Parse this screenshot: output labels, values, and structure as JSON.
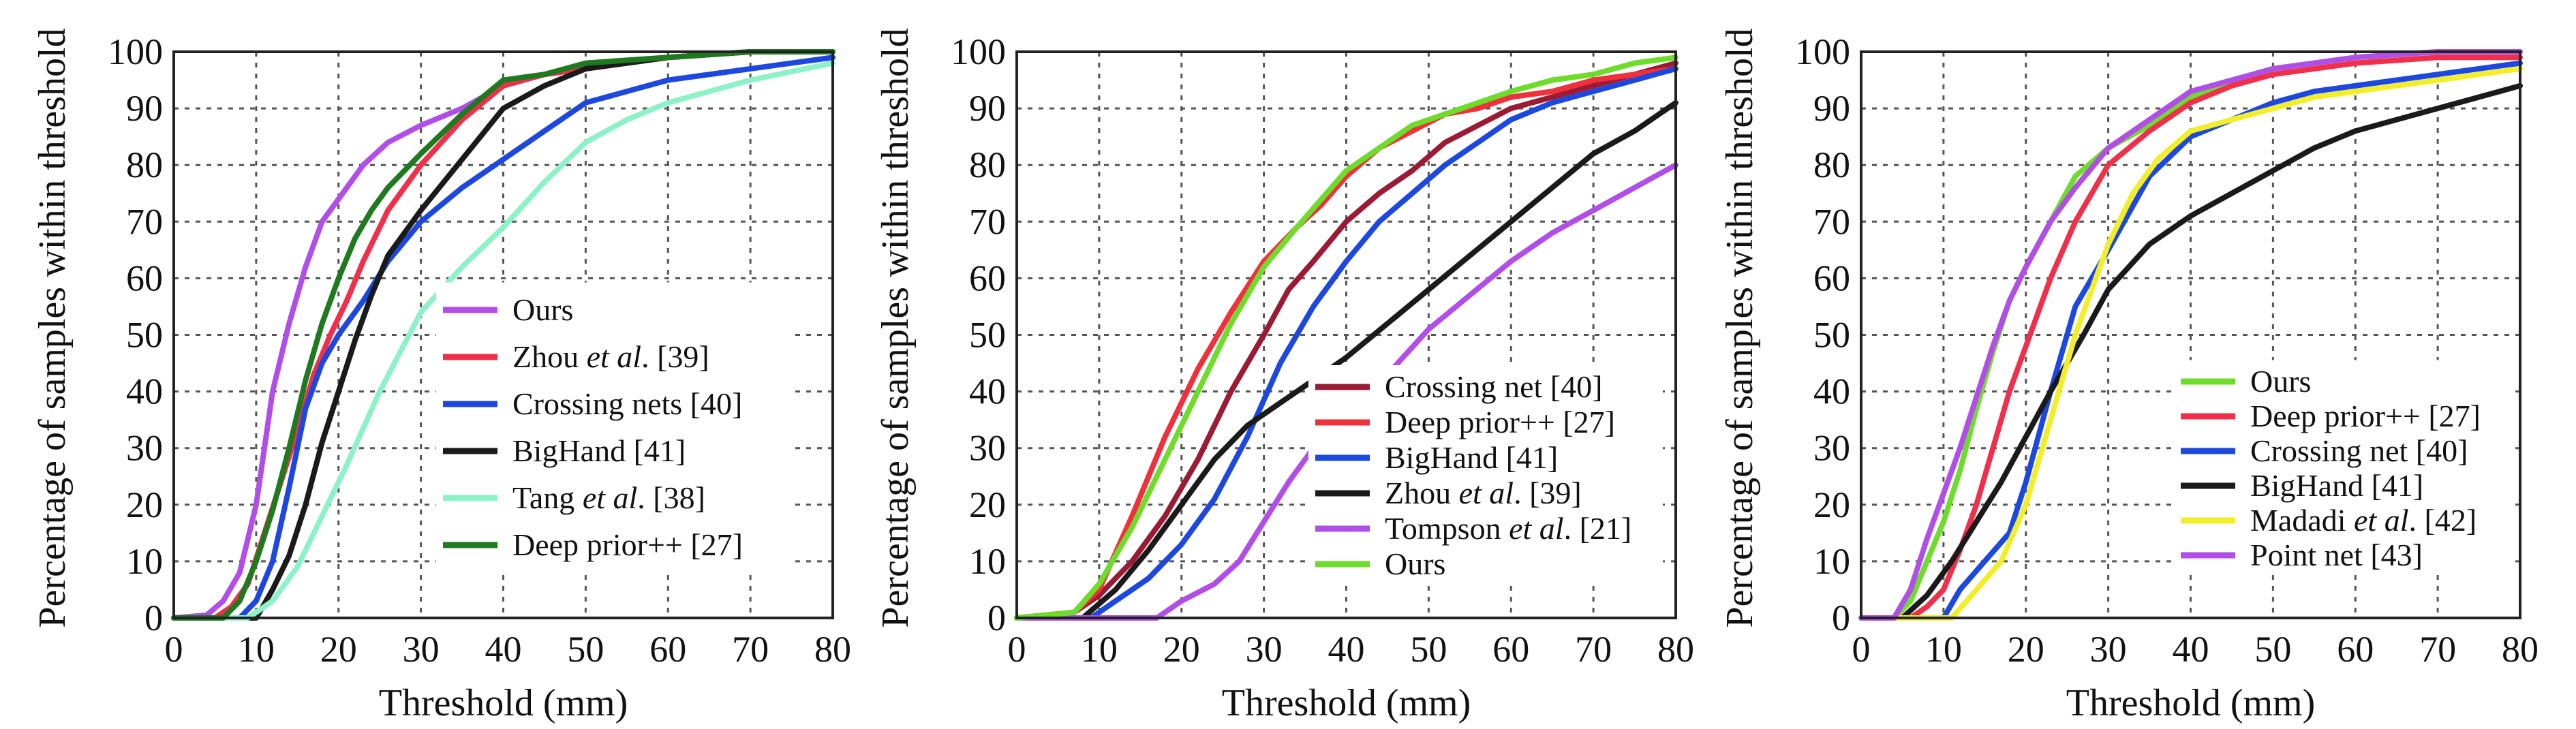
{
  "chart_data": [
    {
      "type": "line",
      "xlabel": "Threshold (mm)",
      "ylabel": "Percentage of samples within threshold",
      "xlim": [
        0,
        80
      ],
      "ylim": [
        0,
        100
      ],
      "xticks": [
        "0",
        "10",
        "20",
        "30",
        "40",
        "50",
        "60",
        "70",
        "80"
      ],
      "yticks": [
        "0",
        "10",
        "20",
        "30",
        "40",
        "50",
        "60",
        "70",
        "80",
        "90",
        "100"
      ],
      "grid": true,
      "legend_position": "lower-right",
      "series": [
        {
          "name": "Ours",
          "color": "#b24ee8",
          "legend_parts": [
            "Ours"
          ],
          "x": [
            0,
            4,
            6,
            8,
            10,
            11,
            12,
            14,
            16,
            18,
            20,
            23,
            26,
            30,
            35,
            40,
            45,
            50,
            60,
            70,
            80
          ],
          "y": [
            0,
            0.5,
            3,
            8,
            20,
            30,
            40,
            52,
            62,
            70,
            74,
            80,
            84,
            87,
            90,
            94,
            96,
            97,
            99,
            100,
            100
          ]
        },
        {
          "name": "Zhou et al. [39]",
          "color": "#f0304a",
          "legend_parts": [
            "Zhou ",
            "et al",
            ". [39]"
          ],
          "x": [
            0,
            5,
            7,
            9,
            11,
            13,
            15,
            17,
            19,
            21,
            23,
            26,
            30,
            35,
            40,
            45,
            50,
            60,
            70,
            80
          ],
          "y": [
            0,
            0,
            2,
            6,
            15,
            24,
            33,
            43,
            50,
            56,
            63,
            72,
            80,
            88,
            94,
            96,
            97,
            99,
            100,
            100
          ]
        },
        {
          "name": "Crossing nets [40]",
          "color": "#1c48e0",
          "legend_parts": [
            "Crossing nets [40]"
          ],
          "x": [
            0,
            8,
            10,
            12,
            14,
            16,
            18,
            20,
            23,
            26,
            30,
            35,
            40,
            45,
            50,
            55,
            60,
            70,
            80
          ],
          "y": [
            0,
            0,
            3,
            10,
            23,
            37,
            45,
            50,
            56,
            63,
            70,
            76,
            81,
            86,
            91,
            93,
            95,
            97,
            99
          ]
        },
        {
          "name": "BigHand [41]",
          "color": "#1a1a1a",
          "legend_parts": [
            "BigHand [41]"
          ],
          "x": [
            0,
            10,
            12,
            14,
            16,
            18,
            20,
            22,
            24,
            26,
            30,
            35,
            40,
            45,
            50,
            60,
            70,
            80
          ],
          "y": [
            0,
            0,
            5,
            11,
            20,
            31,
            40,
            49,
            57,
            64,
            72,
            81,
            90,
            94,
            97,
            99,
            100,
            100
          ]
        },
        {
          "name": "Tang et al. [38]",
          "color": "#8ef2c8",
          "legend_parts": [
            "Tang ",
            "et al",
            ". [38]"
          ],
          "x": [
            0,
            9,
            12,
            15,
            18,
            21,
            25,
            30,
            35,
            40,
            45,
            50,
            55,
            60,
            70,
            80
          ],
          "y": [
            0,
            0,
            3,
            9,
            18,
            27,
            40,
            54,
            62,
            69,
            77,
            84,
            88,
            91,
            95,
            98
          ]
        },
        {
          "name": "Deep prior++ [27]",
          "color": "#1f7a1f",
          "legend_parts": [
            "Deep prior++ [27]"
          ],
          "x": [
            0,
            6,
            8,
            10,
            12,
            14,
            16,
            18,
            20,
            22,
            24,
            26,
            30,
            35,
            40,
            45,
            50,
            60,
            70,
            80
          ],
          "y": [
            0,
            0,
            3,
            10,
            19,
            30,
            42,
            52,
            60,
            67,
            72,
            76,
            82,
            89,
            95,
            96,
            98,
            99,
            100,
            100
          ]
        }
      ],
      "legend_order": [
        0,
        1,
        2,
        3,
        4,
        5
      ]
    },
    {
      "type": "line",
      "xlabel": "Threshold (mm)",
      "ylabel": "Percentage of samples within threshold",
      "xlim": [
        0,
        80
      ],
      "ylim": [
        0,
        100
      ],
      "xticks": [
        "0",
        "10",
        "20",
        "30",
        "40",
        "50",
        "60",
        "70",
        "80"
      ],
      "yticks": [
        "0",
        "10",
        "20",
        "30",
        "40",
        "50",
        "60",
        "70",
        "80",
        "90",
        "100"
      ],
      "grid": true,
      "legend_position": "lower-center",
      "series": [
        {
          "name": "Crossing net [40]",
          "color": "#9b1b35",
          "legend_parts": [
            "Crossing net [40]"
          ],
          "x": [
            0,
            7,
            10,
            14,
            18,
            22,
            26,
            30,
            33,
            36,
            40,
            44,
            48,
            52,
            56,
            60,
            65,
            70,
            75,
            80
          ],
          "y": [
            0,
            1,
            4,
            10,
            18,
            28,
            40,
            50,
            58,
            63,
            70,
            75,
            79,
            84,
            87,
            90,
            92,
            94,
            96,
            98
          ]
        },
        {
          "name": "Deep prior++ [27]",
          "color": "#f0303a",
          "legend_parts": [
            "Deep prior++ [27]"
          ],
          "x": [
            0,
            7,
            10,
            14,
            18,
            22,
            26,
            30,
            34,
            37,
            40,
            44,
            48,
            52,
            56,
            60,
            65,
            70,
            75,
            80
          ],
          "y": [
            0,
            1,
            5,
            18,
            32,
            44,
            54,
            63,
            69,
            73,
            78,
            83,
            86,
            89,
            90,
            92,
            93,
            95,
            96,
            97
          ]
        },
        {
          "name": "BigHand [41]",
          "color": "#1c48e0",
          "legend_parts": [
            "BigHand [41]"
          ],
          "x": [
            0,
            9,
            12,
            16,
            20,
            24,
            28,
            32,
            36,
            40,
            44,
            48,
            52,
            56,
            60,
            65,
            70,
            75,
            80
          ],
          "y": [
            0,
            0,
            3,
            7,
            13,
            21,
            32,
            45,
            55,
            63,
            70,
            75,
            80,
            84,
            88,
            91,
            93,
            95,
            97
          ]
        },
        {
          "name": "Zhou et al. [39]",
          "color": "#1a1a1a",
          "legend_parts": [
            "Zhou ",
            "et al",
            ". [39]"
          ],
          "x": [
            0,
            8,
            12,
            16,
            20,
            24,
            28,
            32,
            36,
            40,
            45,
            50,
            55,
            60,
            65,
            70,
            75,
            80
          ],
          "y": [
            0,
            0,
            5,
            12,
            20,
            28,
            34,
            38,
            42,
            46,
            52,
            58,
            64,
            70,
            76,
            82,
            86,
            91
          ]
        },
        {
          "name": "Tompson et al. [21]",
          "color": "#b24ee8",
          "legend_parts": [
            "Tompson ",
            "et al",
            ". [21]"
          ],
          "x": [
            0,
            17,
            20,
            24,
            27,
            30,
            33,
            36,
            40,
            45,
            50,
            55,
            60,
            65,
            70,
            75,
            80
          ],
          "y": [
            0,
            0,
            3,
            6,
            10,
            17,
            24,
            30,
            36,
            43,
            51,
            57,
            63,
            68,
            72,
            76,
            80
          ]
        },
        {
          "name": "Ours",
          "color": "#6edc2a",
          "legend_parts": [
            "Ours"
          ],
          "x": [
            0,
            7,
            10,
            14,
            18,
            22,
            26,
            30,
            34,
            37,
            40,
            44,
            48,
            52,
            56,
            60,
            65,
            70,
            75,
            80
          ],
          "y": [
            0,
            1,
            6,
            16,
            28,
            40,
            52,
            62,
            69,
            74,
            79,
            83,
            87,
            89,
            91,
            93,
            95,
            96,
            98,
            99
          ]
        }
      ],
      "legend_order": [
        0,
        1,
        2,
        3,
        4,
        5
      ]
    },
    {
      "type": "line",
      "xlabel": "Threshold (mm)",
      "ylabel": "Percentage of samples within threshold",
      "xlim": [
        0,
        80
      ],
      "ylim": [
        0,
        100
      ],
      "xticks": [
        "0",
        "10",
        "20",
        "30",
        "40",
        "50",
        "60",
        "70",
        "80"
      ],
      "yticks": [
        "0",
        "10",
        "20",
        "30",
        "40",
        "50",
        "60",
        "70",
        "80",
        "90",
        "100"
      ],
      "grid": true,
      "legend_position": "lower-right",
      "series": [
        {
          "name": "Ours",
          "color": "#6edc2a",
          "legend_parts": [
            "Ours"
          ],
          "x": [
            0,
            4,
            6,
            8,
            10,
            12,
            14,
            16,
            18,
            20,
            23,
            26,
            30,
            35,
            40,
            45,
            50,
            60,
            70,
            80
          ],
          "y": [
            0,
            0,
            3,
            10,
            17,
            26,
            37,
            47,
            56,
            62,
            70,
            78,
            83,
            87,
            92,
            95,
            97,
            99,
            100,
            100
          ]
        },
        {
          "name": "Deep prior++ [27]",
          "color": "#f0304a",
          "legend_parts": [
            "Deep prior++ [27]"
          ],
          "x": [
            0,
            6,
            8,
            10,
            12,
            14,
            16,
            18,
            20,
            23,
            26,
            30,
            35,
            40,
            45,
            50,
            60,
            70,
            80
          ],
          "y": [
            0,
            0,
            2,
            5,
            12,
            20,
            30,
            40,
            48,
            60,
            70,
            80,
            86,
            91,
            94,
            96,
            98,
            99,
            99
          ]
        },
        {
          "name": "Crossing net [40]",
          "color": "#1c48e0",
          "legend_parts": [
            "Crossing net [40]"
          ],
          "x": [
            0,
            10,
            12,
            15,
            18,
            20,
            23,
            26,
            30,
            35,
            40,
            45,
            50,
            55,
            60,
            70,
            80
          ],
          "y": [
            0,
            0,
            5,
            10,
            15,
            24,
            40,
            55,
            65,
            78,
            85,
            88,
            91,
            93,
            94,
            96,
            98
          ]
        },
        {
          "name": "BigHand [41]",
          "color": "#1a1a1a",
          "legend_parts": [
            "BigHand [41]"
          ],
          "x": [
            0,
            5,
            8,
            11,
            14,
            17,
            20,
            23,
            27,
            30,
            35,
            40,
            45,
            50,
            55,
            60,
            65,
            70,
            75,
            80
          ],
          "y": [
            0,
            0,
            4,
            10,
            17,
            24,
            32,
            40,
            50,
            58,
            66,
            71,
            75,
            79,
            83,
            86,
            88,
            90,
            92,
            94
          ]
        },
        {
          "name": "Madadi et al. [42]",
          "color": "#f2ee2a",
          "legend_parts": [
            "Madadi ",
            "et al",
            ". [42]"
          ],
          "x": [
            0,
            11,
            14,
            17,
            20,
            23,
            26,
            30,
            33,
            36,
            40,
            45,
            50,
            55,
            60,
            65,
            70,
            75,
            80
          ],
          "y": [
            0,
            0,
            5,
            10,
            20,
            35,
            50,
            66,
            75,
            81,
            86,
            88,
            90,
            92,
            93,
            94,
            95,
            96,
            97
          ]
        },
        {
          "name": "Point net [43]",
          "color": "#b24ee8",
          "legend_parts": [
            "Point net [43]"
          ],
          "x": [
            0,
            4,
            6,
            8,
            10,
            12,
            14,
            16,
            18,
            20,
            23,
            26,
            30,
            35,
            40,
            45,
            50,
            60,
            70,
            80
          ],
          "y": [
            0,
            0,
            5,
            14,
            22,
            30,
            39,
            48,
            56,
            62,
            70,
            76,
            83,
            88,
            93,
            95,
            97,
            99,
            100,
            100
          ]
        }
      ],
      "legend_order": [
        0,
        1,
        2,
        3,
        4,
        5
      ]
    }
  ]
}
